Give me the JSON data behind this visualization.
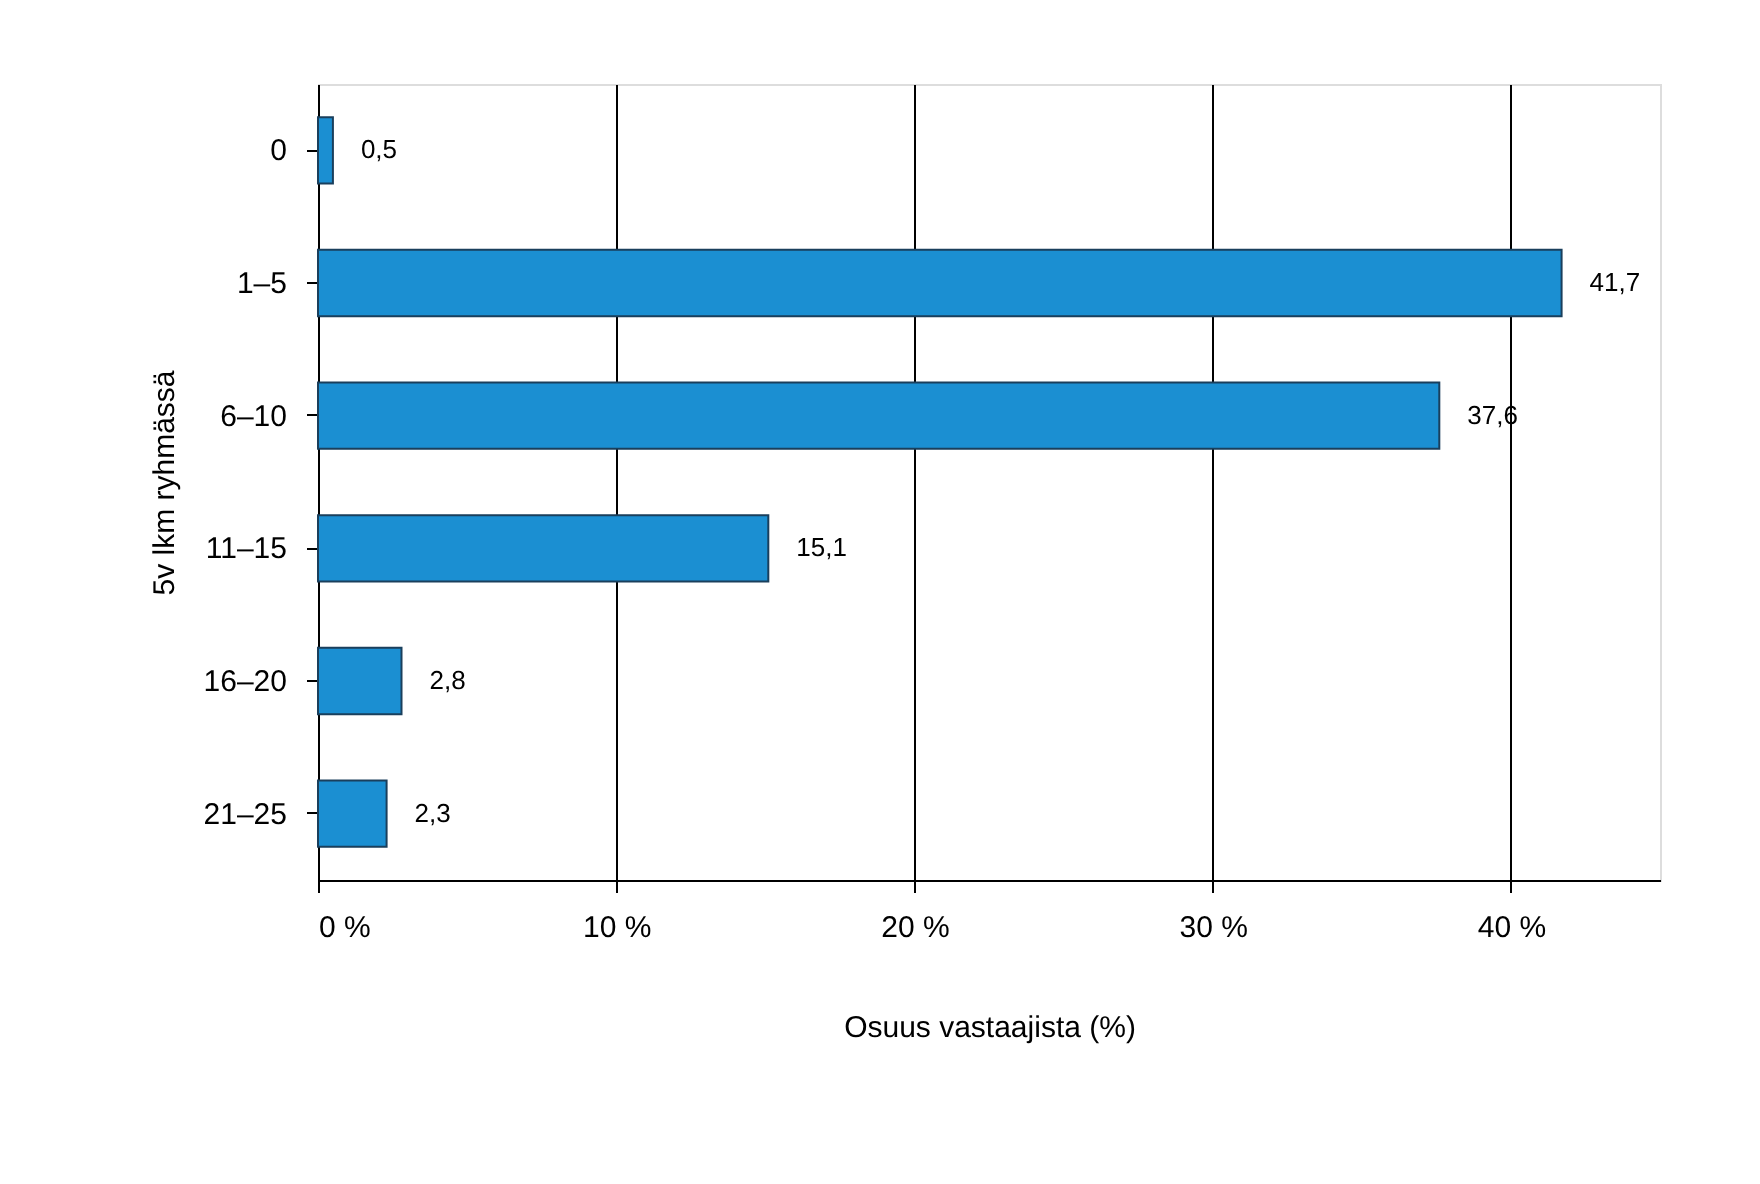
{
  "chart_data": {
    "type": "bar",
    "orientation": "horizontal",
    "xlabel": "Osuus vastaajista (%)",
    "ylabel": "5v lkm ryhmässä",
    "categories": [
      "0",
      "1–5",
      "6–10",
      "11–15",
      "16–20",
      "21–25"
    ],
    "values": [
      0.5,
      41.7,
      37.6,
      15.1,
      2.8,
      2.3
    ],
    "value_labels": [
      "0,5",
      "41,7",
      "37,6",
      "15,1",
      "2,8",
      "2,3"
    ],
    "color": "#1b8fd2",
    "xlim": [
      0,
      45
    ],
    "xticks": [
      {
        "value": 0,
        "label": "0 %"
      },
      {
        "value": 10,
        "label": "10 %"
      },
      {
        "value": 20,
        "label": "20 %"
      },
      {
        "value": 30,
        "label": "30 %"
      },
      {
        "value": 40,
        "label": "40 %"
      }
    ],
    "grid": "x"
  }
}
